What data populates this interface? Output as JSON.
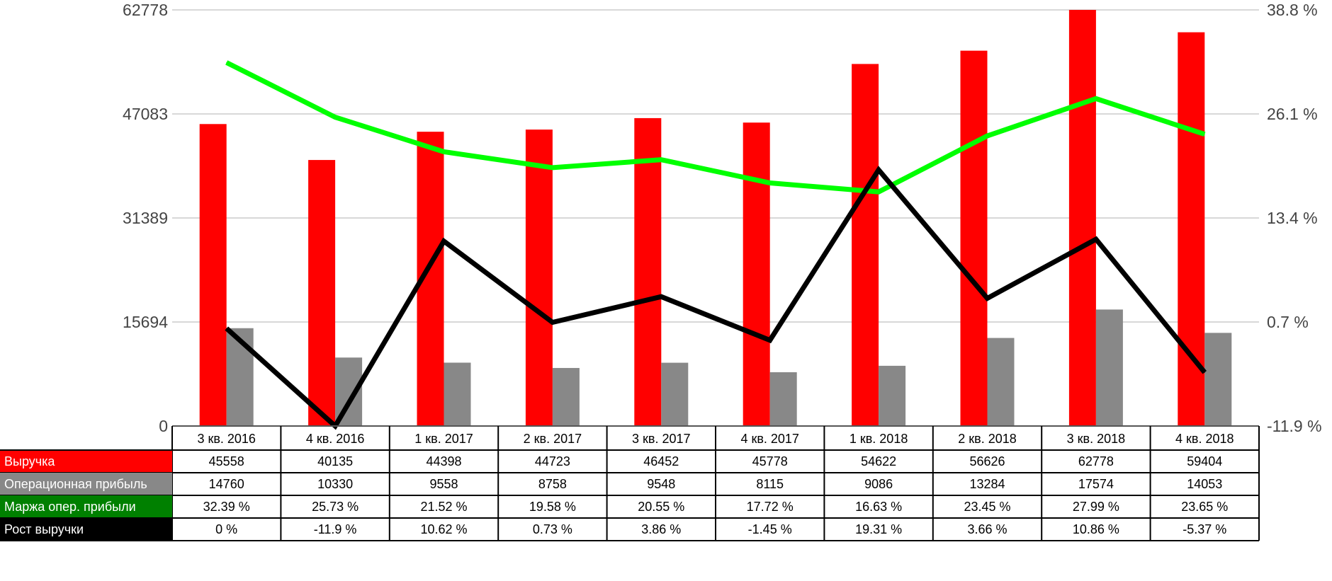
{
  "chart_data": {
    "type": "bar",
    "categories": [
      "3 кв. 2016",
      "4 кв. 2016",
      "1 кв. 2017",
      "2 кв. 2017",
      "3 кв. 2017",
      "4 кв. 2017",
      "1 кв. 2018",
      "2 кв. 2018",
      "3 кв. 2018",
      "4 кв. 2018"
    ],
    "left_axis": {
      "ticks": [
        "0",
        "15694",
        "31389",
        "47083",
        "62778"
      ],
      "ylim": [
        0,
        62778
      ]
    },
    "right_axis": {
      "ticks": [
        "-11.9 %",
        "0.7 %",
        "13.4 %",
        "26.1 %",
        "38.8 %"
      ],
      "ylim": [
        -11.9,
        38.8
      ]
    },
    "grid": true,
    "series": [
      {
        "name": "Выручка",
        "kind": "bar",
        "axis": "left",
        "color": "#ff0000",
        "values": [
          45558,
          40135,
          44398,
          44723,
          46452,
          45778,
          54622,
          56626,
          62778,
          59404
        ],
        "labels": [
          "45558",
          "40135",
          "44398",
          "44723",
          "46452",
          "45778",
          "54622",
          "56626",
          "62778",
          "59404"
        ]
      },
      {
        "name": "Операционная прибыль",
        "kind": "bar",
        "axis": "left",
        "color": "#888888",
        "values": [
          14760,
          10330,
          9558,
          8758,
          9548,
          8115,
          9086,
          13284,
          17574,
          14053
        ],
        "labels": [
          "14760",
          "10330",
          "9558",
          "8758",
          "9548",
          "8115",
          "9086",
          "13284",
          "17574",
          "14053"
        ]
      },
      {
        "name": "Маржа опер. прибыли",
        "kind": "line",
        "axis": "right",
        "color": "#00ff00",
        "legend_color": "#008000",
        "values": [
          32.39,
          25.73,
          21.52,
          19.58,
          20.55,
          17.72,
          16.63,
          23.45,
          27.99,
          23.65
        ],
        "labels": [
          "32.39 %",
          "25.73 %",
          "21.52 %",
          "19.58 %",
          "20.55 %",
          "17.72 %",
          "16.63 %",
          "23.45 %",
          "27.99 %",
          "23.65 %"
        ]
      },
      {
        "name": "Рост выручки",
        "kind": "line",
        "axis": "right",
        "color": "#000000",
        "legend_color": "#000000",
        "values": [
          0,
          -11.9,
          10.62,
          0.73,
          3.86,
          -1.45,
          19.31,
          3.66,
          10.86,
          -5.37
        ],
        "labels": [
          "0 %",
          "-11.9 %",
          "10.62 %",
          "0.73 %",
          "3.86 %",
          "-1.45 %",
          "19.31 %",
          "3.66 %",
          "10.86 %",
          "-5.37 %"
        ]
      }
    ]
  }
}
